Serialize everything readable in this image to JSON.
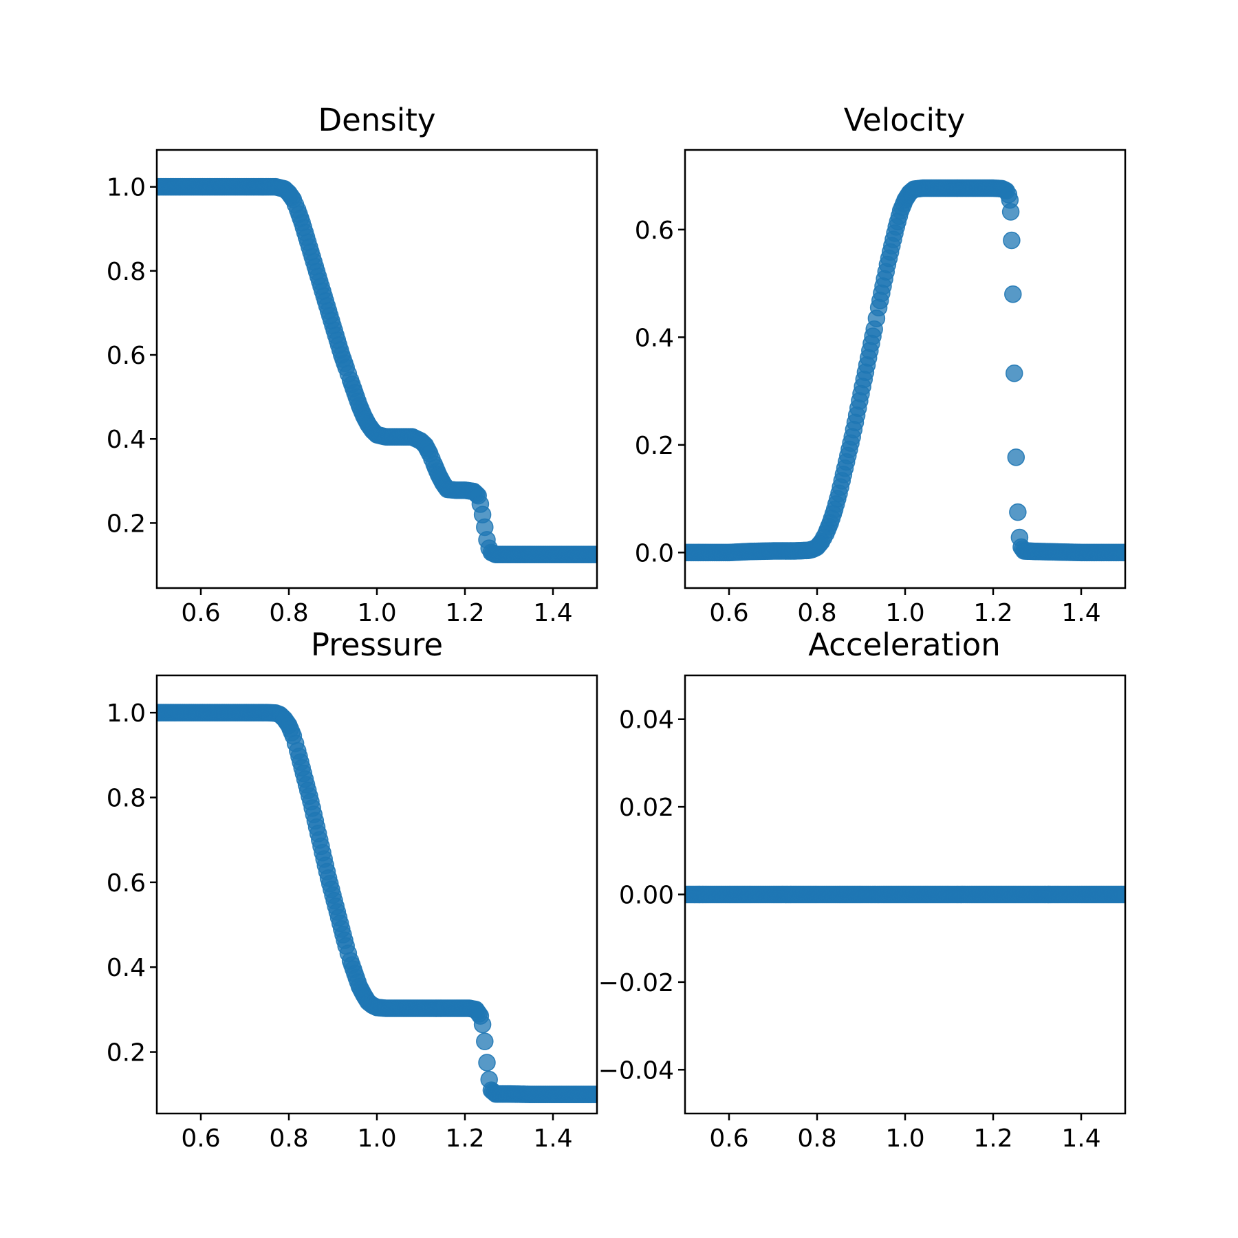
{
  "marker_color": "#1f77b4",
  "chart_data": [
    {
      "type": "scatter",
      "title": "Density",
      "xlim": [
        0.5,
        1.5
      ],
      "ylim": [
        0.0452,
        1.0878
      ],
      "xticks": [
        "0.6",
        "0.8",
        "1.0",
        "1.2",
        "1.4"
      ],
      "xtick_values": [
        0.6,
        0.8,
        1.0,
        1.2,
        1.4
      ],
      "yticks": [
        "0.2",
        "0.4",
        "0.6",
        "0.8",
        "1.0"
      ],
      "ytick_values": [
        0.2,
        0.4,
        0.6,
        0.8,
        1.0
      ],
      "series": [
        {
          "points": [
            [
              0.5,
              1.0
            ],
            [
              0.55,
              1.0
            ],
            [
              0.6,
              1.0
            ],
            [
              0.65,
              1.0
            ],
            [
              0.7,
              1.0
            ],
            [
              0.75,
              1.0
            ],
            [
              0.77,
              1.0
            ],
            [
              0.79,
              0.995
            ],
            [
              0.8,
              0.985
            ],
            [
              0.81,
              0.97
            ],
            [
              0.82,
              0.945
            ],
            [
              0.83,
              0.915
            ],
            [
              0.84,
              0.88
            ],
            [
              0.85,
              0.845
            ],
            [
              0.86,
              0.81
            ],
            [
              0.87,
              0.775
            ],
            [
              0.88,
              0.74
            ],
            [
              0.89,
              0.705
            ],
            [
              0.9,
              0.67
            ],
            [
              0.91,
              0.635
            ],
            [
              0.92,
              0.6
            ],
            [
              0.93,
              0.57
            ],
            [
              0.94,
              0.54
            ],
            [
              0.95,
              0.51
            ],
            [
              0.96,
              0.48
            ],
            [
              0.97,
              0.455
            ],
            [
              0.98,
              0.435
            ],
            [
              0.99,
              0.42
            ],
            [
              1.0,
              0.41
            ],
            [
              1.02,
              0.405
            ],
            [
              1.04,
              0.405
            ],
            [
              1.06,
              0.405
            ],
            [
              1.08,
              0.405
            ],
            [
              1.09,
              0.4
            ],
            [
              1.1,
              0.395
            ],
            [
              1.11,
              0.385
            ],
            [
              1.12,
              0.365
            ],
            [
              1.13,
              0.34
            ],
            [
              1.14,
              0.315
            ],
            [
              1.15,
              0.295
            ],
            [
              1.16,
              0.28
            ],
            [
              1.18,
              0.278
            ],
            [
              1.2,
              0.278
            ],
            [
              1.22,
              0.275
            ],
            [
              1.23,
              0.265
            ],
            [
              1.235,
              0.245
            ],
            [
              1.24,
              0.22
            ],
            [
              1.245,
              0.19
            ],
            [
              1.25,
              0.16
            ],
            [
              1.255,
              0.14
            ],
            [
              1.26,
              0.13
            ],
            [
              1.27,
              0.125
            ],
            [
              1.3,
              0.125
            ],
            [
              1.35,
              0.125
            ],
            [
              1.4,
              0.125
            ],
            [
              1.45,
              0.125
            ],
            [
              1.5,
              0.125
            ]
          ]
        }
      ]
    },
    {
      "type": "scatter",
      "title": "Velocity",
      "xlim": [
        0.5,
        1.5
      ],
      "ylim": [
        -0.066,
        0.748
      ],
      "xticks": [
        "0.6",
        "0.8",
        "1.0",
        "1.2",
        "1.4"
      ],
      "xtick_values": [
        0.6,
        0.8,
        1.0,
        1.2,
        1.4
      ],
      "yticks": [
        "0.0",
        "0.2",
        "0.4",
        "0.6"
      ],
      "ytick_values": [
        0.0,
        0.2,
        0.4,
        0.6
      ],
      "series": [
        {
          "points": [
            [
              0.5,
              0.0
            ],
            [
              0.55,
              0.0
            ],
            [
              0.6,
              0.0
            ],
            [
              0.65,
              0.002
            ],
            [
              0.7,
              0.003
            ],
            [
              0.75,
              0.003
            ],
            [
              0.78,
              0.004
            ],
            [
              0.79,
              0.006
            ],
            [
              0.8,
              0.01
            ],
            [
              0.81,
              0.02
            ],
            [
              0.82,
              0.035
            ],
            [
              0.83,
              0.055
            ],
            [
              0.84,
              0.08
            ],
            [
              0.85,
              0.11
            ],
            [
              0.86,
              0.145
            ],
            [
              0.87,
              0.18
            ],
            [
              0.88,
              0.215
            ],
            [
              0.89,
              0.255
            ],
            [
              0.9,
              0.295
            ],
            [
              0.91,
              0.335
            ],
            [
              0.92,
              0.375
            ],
            [
              0.93,
              0.415
            ],
            [
              0.94,
              0.455
            ],
            [
              0.95,
              0.495
            ],
            [
              0.96,
              0.535
            ],
            [
              0.97,
              0.57
            ],
            [
              0.98,
              0.605
            ],
            [
              0.99,
              0.635
            ],
            [
              1.0,
              0.655
            ],
            [
              1.01,
              0.668
            ],
            [
              1.02,
              0.675
            ],
            [
              1.04,
              0.677
            ],
            [
              1.08,
              0.677
            ],
            [
              1.12,
              0.677
            ],
            [
              1.16,
              0.677
            ],
            [
              1.2,
              0.677
            ],
            [
              1.22,
              0.676
            ],
            [
              1.23,
              0.672
            ],
            [
              1.235,
              0.665
            ],
            [
              1.238,
              0.655
            ],
            [
              1.24,
              0.633
            ],
            [
              1.242,
              0.58
            ],
            [
              1.245,
              0.48
            ],
            [
              1.248,
              0.333
            ],
            [
              1.252,
              0.177
            ],
            [
              1.256,
              0.075
            ],
            [
              1.26,
              0.028
            ],
            [
              1.264,
              0.01
            ],
            [
              1.27,
              0.003
            ],
            [
              1.3,
              0.002
            ],
            [
              1.35,
              0.001
            ],
            [
              1.4,
              0.0
            ],
            [
              1.45,
              0.0
            ],
            [
              1.5,
              0.0
            ]
          ]
        }
      ]
    },
    {
      "type": "scatter",
      "title": "Pressure",
      "xlim": [
        0.5,
        1.5
      ],
      "ylim": [
        0.055,
        1.0878
      ],
      "xticks": [
        "0.6",
        "0.8",
        "1.0",
        "1.2",
        "1.4"
      ],
      "xtick_values": [
        0.6,
        0.8,
        1.0,
        1.2,
        1.4
      ],
      "yticks": [
        "0.2",
        "0.4",
        "0.6",
        "0.8",
        "1.0"
      ],
      "ytick_values": [
        0.2,
        0.4,
        0.6,
        0.8,
        1.0
      ],
      "series": [
        {
          "points": [
            [
              0.5,
              1.0
            ],
            [
              0.55,
              1.0
            ],
            [
              0.6,
              1.0
            ],
            [
              0.65,
              1.0
            ],
            [
              0.7,
              1.0
            ],
            [
              0.75,
              1.0
            ],
            [
              0.77,
              0.999
            ],
            [
              0.78,
              0.995
            ],
            [
              0.79,
              0.985
            ],
            [
              0.8,
              0.97
            ],
            [
              0.81,
              0.945
            ],
            [
              0.82,
              0.91
            ],
            [
              0.83,
              0.87
            ],
            [
              0.84,
              0.83
            ],
            [
              0.85,
              0.79
            ],
            [
              0.86,
              0.745
            ],
            [
              0.87,
              0.7
            ],
            [
              0.88,
              0.655
            ],
            [
              0.89,
              0.61
            ],
            [
              0.9,
              0.57
            ],
            [
              0.91,
              0.53
            ],
            [
              0.92,
              0.49
            ],
            [
              0.93,
              0.45
            ],
            [
              0.94,
              0.415
            ],
            [
              0.95,
              0.385
            ],
            [
              0.96,
              0.355
            ],
            [
              0.97,
              0.335
            ],
            [
              0.98,
              0.318
            ],
            [
              0.99,
              0.31
            ],
            [
              1.0,
              0.305
            ],
            [
              1.02,
              0.303
            ],
            [
              1.06,
              0.303
            ],
            [
              1.1,
              0.303
            ],
            [
              1.14,
              0.303
            ],
            [
              1.18,
              0.303
            ],
            [
              1.21,
              0.303
            ],
            [
              1.225,
              0.3
            ],
            [
              1.235,
              0.285
            ],
            [
              1.24,
              0.265
            ],
            [
              1.245,
              0.225
            ],
            [
              1.25,
              0.175
            ],
            [
              1.255,
              0.135
            ],
            [
              1.26,
              0.11
            ],
            [
              1.27,
              0.101
            ],
            [
              1.3,
              0.101
            ],
            [
              1.35,
              0.1
            ],
            [
              1.4,
              0.1
            ],
            [
              1.45,
              0.1
            ],
            [
              1.5,
              0.1
            ]
          ]
        }
      ]
    },
    {
      "type": "scatter",
      "title": "Acceleration",
      "xlim": [
        0.5,
        1.5
      ],
      "ylim": [
        -0.05,
        0.05
      ],
      "xticks": [
        "0.6",
        "0.8",
        "1.0",
        "1.2",
        "1.4"
      ],
      "xtick_values": [
        0.6,
        0.8,
        1.0,
        1.2,
        1.4
      ],
      "yticks": [
        "−0.04",
        "−0.02",
        "0.00",
        "0.02",
        "0.04"
      ],
      "ytick_values": [
        -0.04,
        -0.02,
        0.0,
        0.02,
        0.04
      ],
      "series": [
        {
          "points": [
            [
              0.5,
              0.0
            ],
            [
              0.55,
              0.0
            ],
            [
              0.6,
              0.0
            ],
            [
              0.65,
              0.0
            ],
            [
              0.7,
              0.0
            ],
            [
              0.75,
              0.0
            ],
            [
              0.8,
              0.0
            ],
            [
              0.85,
              0.0
            ],
            [
              0.9,
              0.0
            ],
            [
              0.95,
              0.0
            ],
            [
              1.0,
              0.0
            ],
            [
              1.05,
              0.0
            ],
            [
              1.1,
              0.0
            ],
            [
              1.15,
              0.0
            ],
            [
              1.2,
              0.0
            ],
            [
              1.25,
              0.0
            ],
            [
              1.3,
              0.0
            ],
            [
              1.35,
              0.0
            ],
            [
              1.4,
              0.0
            ],
            [
              1.45,
              0.0
            ],
            [
              1.5,
              0.0
            ]
          ]
        }
      ]
    }
  ]
}
